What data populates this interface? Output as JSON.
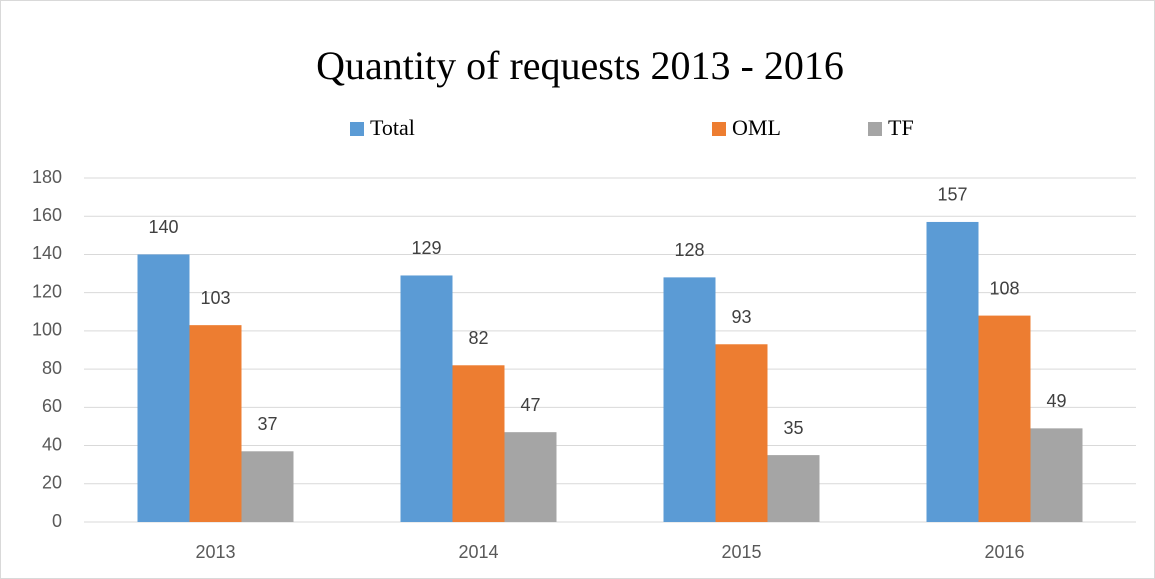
{
  "chart_data": {
    "type": "bar",
    "title": "Quantity of requests 2013 - 2016",
    "categories": [
      "2013",
      "2014",
      "2015",
      "2016"
    ],
    "series": [
      {
        "name": "Total",
        "color": "#5b9bd5",
        "values": [
          140,
          129,
          128,
          157
        ]
      },
      {
        "name": "OML",
        "color": "#ed7d31",
        "values": [
          103,
          82,
          93,
          108
        ]
      },
      {
        "name": "TF",
        "color": "#a5a5a5",
        "values": [
          37,
          47,
          35,
          49
        ]
      }
    ],
    "ylim": [
      0,
      180
    ],
    "yticks": [
      0,
      20,
      40,
      60,
      80,
      100,
      120,
      140,
      160,
      180
    ],
    "grid": true,
    "legend": "top"
  }
}
